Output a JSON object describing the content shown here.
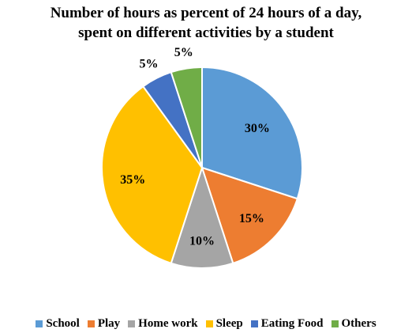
{
  "chart_data": {
    "type": "pie",
    "title_lines": [
      "Number of hours as percent of 24 hours of a day,",
      "spent on different activities by a student"
    ],
    "categories": [
      "School",
      "Play",
      "Home work",
      "Sleep",
      "Eating Food",
      "Others"
    ],
    "values": [
      30,
      15,
      10,
      35,
      5,
      5
    ],
    "labels": [
      "30%",
      "15%",
      "10%",
      "35%",
      "5%",
      "5%"
    ],
    "colors": [
      "#5B9BD5",
      "#ED7D31",
      "#A5A5A5",
      "#FFC000",
      "#4472C4",
      "#70AD47"
    ],
    "legend_position": "bottom",
    "start_angle": "top, clockwise"
  }
}
